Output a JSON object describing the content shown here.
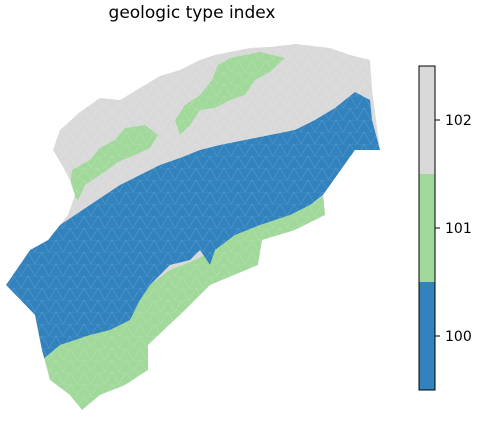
{
  "chart_data": {
    "type": "heatmap",
    "title": "geologic type index",
    "xlabel": "",
    "ylabel": "",
    "grid": false,
    "legend_placement": "right",
    "colorbar": {
      "categories": [
        {
          "value": 100,
          "label": "100",
          "color": "#3182bd"
        },
        {
          "value": 101,
          "label": "101",
          "color": "#a1d99b"
        },
        {
          "value": 102,
          "label": "102",
          "color": "#d9d9d9"
        }
      ],
      "range": [
        99.5,
        102.5
      ]
    },
    "regions": [
      {
        "name": "102",
        "value": 102,
        "color": "#d9d9d9"
      },
      {
        "name": "101",
        "value": 101,
        "color": "#a1d99b"
      },
      {
        "name": "100",
        "value": 100,
        "color": "#3182bd"
      }
    ]
  }
}
